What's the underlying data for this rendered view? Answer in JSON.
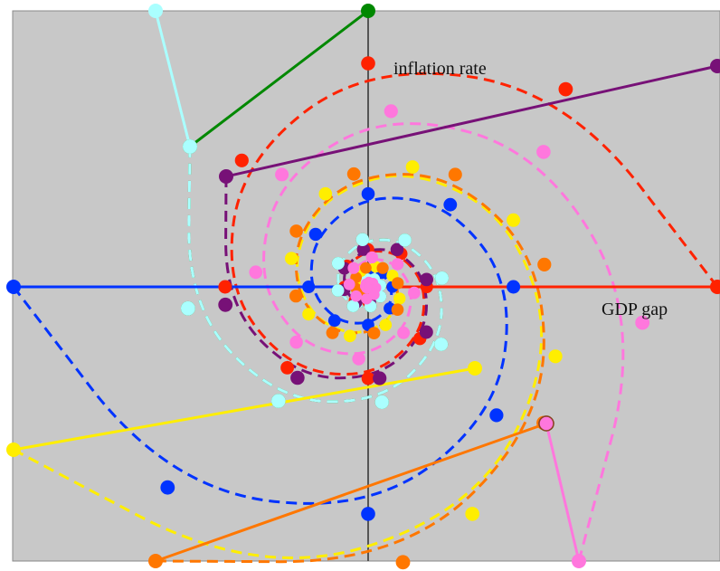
{
  "labels": {
    "y_axis": "inflation rate",
    "x_axis": "GDP gap"
  },
  "colors": {
    "background": "#c8c8c8",
    "axis": "#555555",
    "red": "#ff2200",
    "blue": "#0033ff",
    "green": "#008800",
    "purple": "#771177",
    "cyan": "#aaffff",
    "yellow": "#ffee00",
    "orange": "#ff7700",
    "pink": "#ff77dd"
  },
  "series": [
    {
      "color": "red"
    },
    {
      "color": "blue"
    },
    {
      "color": "green"
    },
    {
      "color": "purple"
    },
    {
      "color": "cyan"
    },
    {
      "color": "yellow"
    },
    {
      "color": "orange"
    },
    {
      "color": "pink"
    }
  ]
}
